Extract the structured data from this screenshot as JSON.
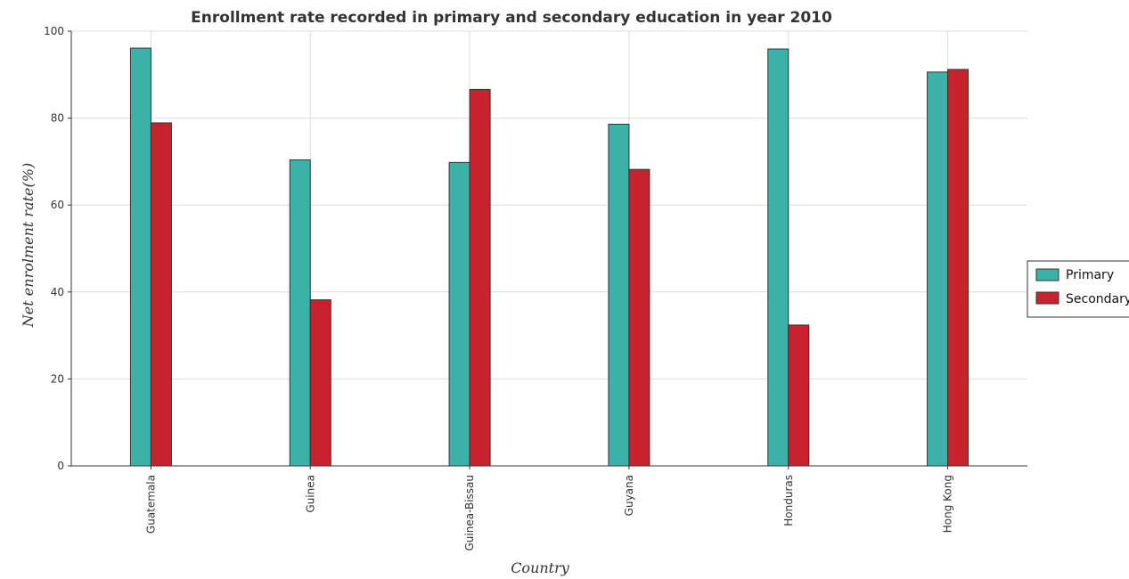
{
  "chart_data": {
    "type": "bar",
    "title": "Enrollment rate recorded in primary and secondary education in year 2010",
    "xlabel": "Country",
    "ylabel": "Net enrolment rate(%)",
    "categories": [
      "Guatemala",
      "Guinea",
      "Guinea-Bissau",
      "Guyana",
      "Honduras",
      "Hong Kong"
    ],
    "series": [
      {
        "name": "Primary",
        "color": "#3cb1a7",
        "values": [
          96.1,
          70.4,
          69.8,
          78.6,
          95.9,
          90.6
        ]
      },
      {
        "name": "Secondary",
        "color": "#c8222d",
        "values": [
          78.9,
          38.2,
          86.6,
          68.2,
          32.4,
          91.2
        ]
      }
    ],
    "ylim": [
      0,
      100
    ],
    "yticks": [
      0,
      20,
      40,
      60,
      80,
      100
    ],
    "grid": true,
    "legend_position": "right"
  }
}
